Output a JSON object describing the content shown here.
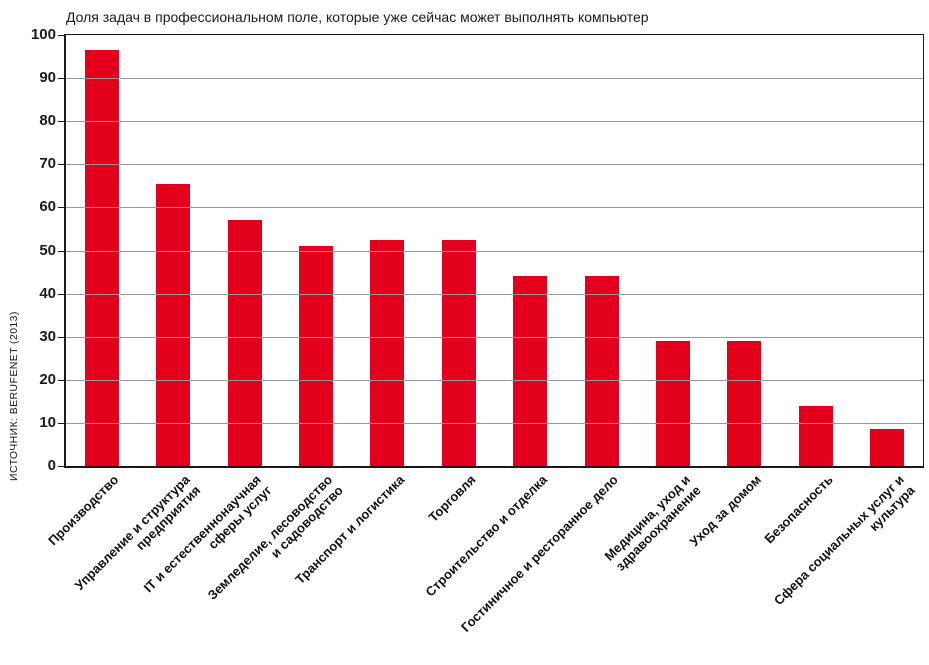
{
  "chart_data": {
    "type": "bar",
    "title": "Доля задач в профессиональном поле, которые уже сейчас может выполнять компьютер",
    "source": "ИСТОЧНИК: BERUFENET (2013)",
    "categories": [
      "Производство",
      "Управление и структура\nпредприятия",
      "IT и естественнонаучная\nсферы услуг",
      "Земледелие, лесоводство\nи садоводство",
      "Транспорт и логистика",
      "Торговля",
      "Строительство и отделка",
      "Гостиничное и ресторанное дело",
      "Медицина, уход и\nздравоохранение",
      "Уход за домом",
      "Безопасность",
      "Сфера социальных услуг и\nкультура"
    ],
    "values": [
      96.5,
      65.5,
      57,
      51,
      52.5,
      52.5,
      44,
      44,
      29,
      29,
      14,
      8.5
    ],
    "xlabel": "",
    "ylabel": "",
    "ylim": [
      0,
      100
    ],
    "yticks": [
      0,
      10,
      20,
      30,
      40,
      50,
      60,
      70,
      80,
      90,
      100
    ],
    "grid": true,
    "legend": "none",
    "bar_color": "#e2001c",
    "grid_color": "#999999",
    "axis_color": "#1a1a1a"
  }
}
